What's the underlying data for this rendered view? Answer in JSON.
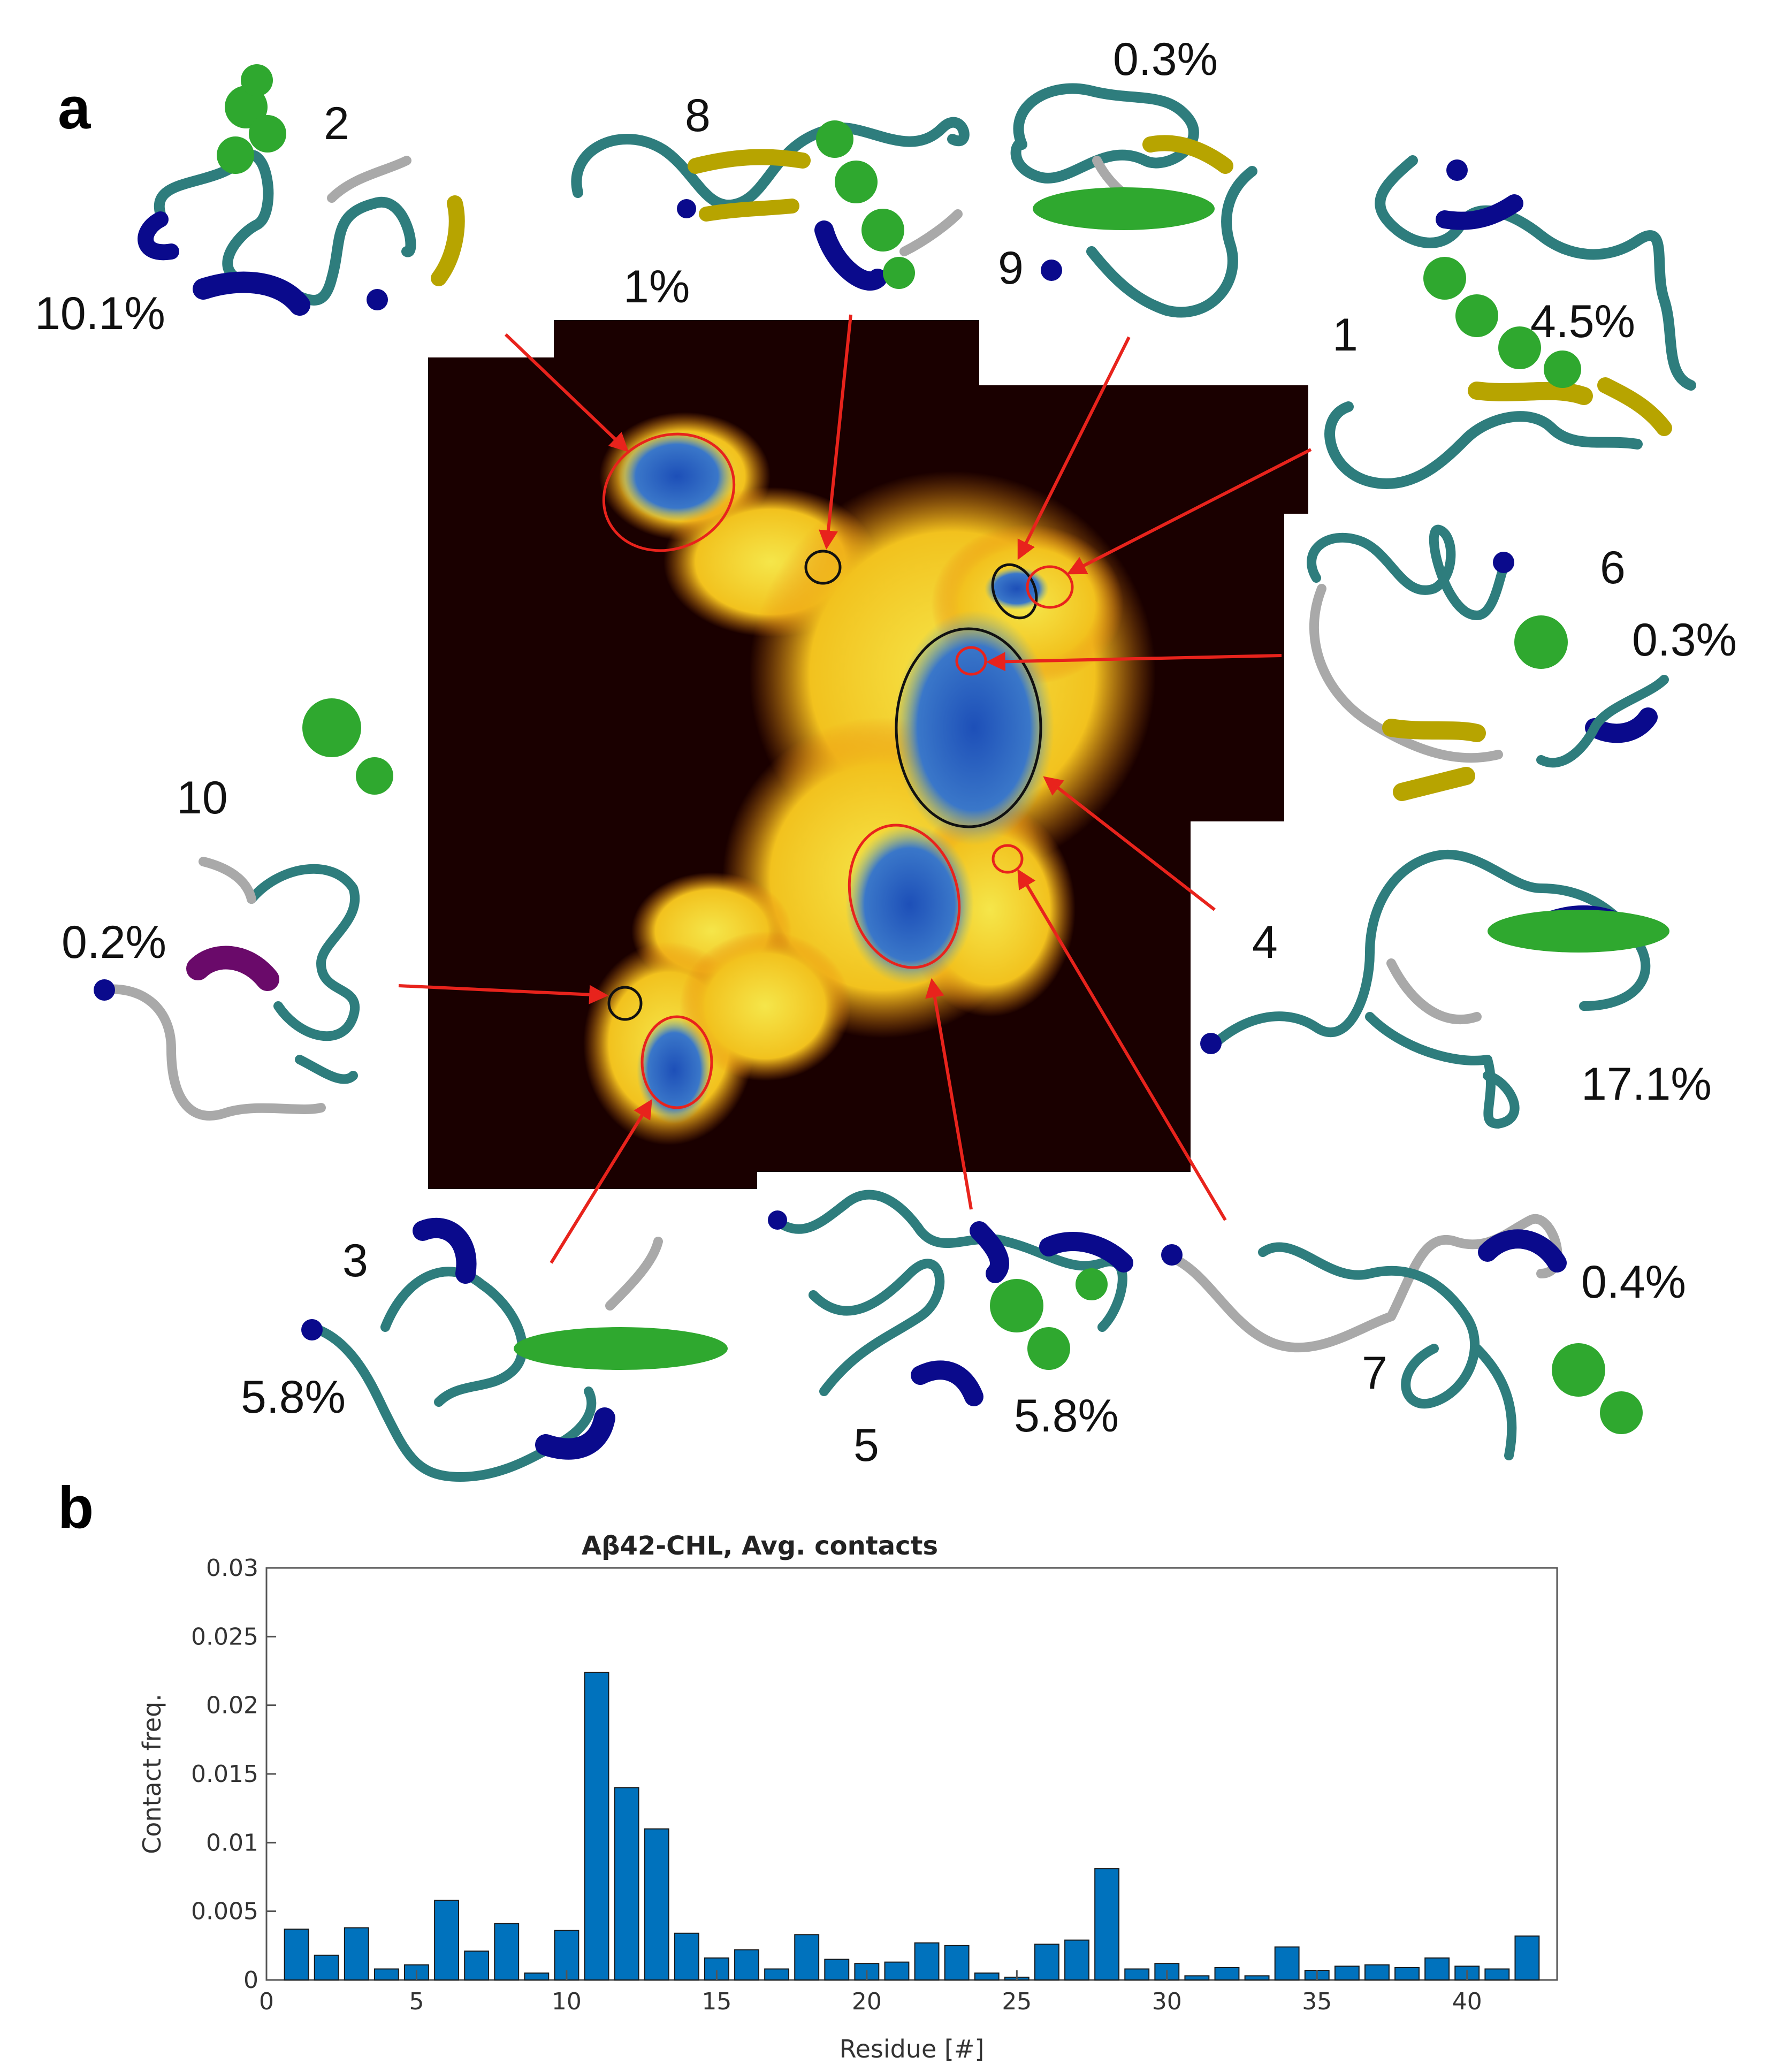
{
  "panel_a": {
    "letter": "a",
    "clusters": [
      {
        "id": "1",
        "percent": "4.5%"
      },
      {
        "id": "2",
        "percent": "10.1%"
      },
      {
        "id": "3",
        "percent": "5.8%"
      },
      {
        "id": "4",
        "percent": "17.1%"
      },
      {
        "id": "5",
        "percent": "5.8%"
      },
      {
        "id": "6",
        "percent": "0.3%"
      },
      {
        "id": "7",
        "percent": "0.4%"
      },
      {
        "id": "8",
        "percent": "1%"
      },
      {
        "id": "9",
        "percent": "0.3%"
      },
      {
        "id": "10",
        "percent": "0.2%"
      }
    ],
    "colors": {
      "background_map": "#1a0000",
      "density_low": "#ff9900",
      "density_mid": "#ffee33",
      "density_high": "#2255cc",
      "arrow": "#e8231c",
      "ribbon_coil": "#2e7d7d",
      "ribbon_helix": "#0a0a8c",
      "ribbon_sheet": "#b7a400",
      "ribbon_turn": "#a9a9a9",
      "ligand": "#2fa82f"
    }
  },
  "panel_b": {
    "letter": "b",
    "chart_data": {
      "type": "bar",
      "title": "Aβ42-CHL, Avg. contacts",
      "xlabel": "Residue [#]",
      "ylabel": "Contact freq.",
      "xlim": [
        0,
        43
      ],
      "ylim": [
        0,
        0.03
      ],
      "grid": false,
      "x": [
        1,
        2,
        3,
        4,
        5,
        6,
        7,
        8,
        9,
        10,
        11,
        12,
        13,
        14,
        15,
        16,
        17,
        18,
        19,
        20,
        21,
        22,
        23,
        24,
        25,
        26,
        27,
        28,
        29,
        30,
        31,
        32,
        33,
        34,
        35,
        36,
        37,
        38,
        39,
        40,
        41,
        42
      ],
      "values": [
        0.0037,
        0.0018,
        0.0038,
        0.0008,
        0.0011,
        0.0058,
        0.0021,
        0.0041,
        0.0005,
        0.0036,
        0.0224,
        0.014,
        0.011,
        0.0034,
        0.0016,
        0.0022,
        0.0008,
        0.0033,
        0.0015,
        0.0012,
        0.0013,
        0.0027,
        0.0025,
        0.0005,
        0.0002,
        0.0026,
        0.0029,
        0.0081,
        0.0008,
        0.0012,
        0.0003,
        0.0009,
        0.0003,
        0.0024,
        0.0007,
        0.001,
        0.0011,
        0.0009,
        0.0016,
        0.001,
        0.0008,
        0.0032
      ],
      "x_ticks": [
        "0",
        "5",
        "10",
        "15",
        "20",
        "25",
        "30",
        "35",
        "40"
      ],
      "y_ticks": [
        "0",
        "0.005",
        "0.01",
        "0.015",
        "0.02",
        "0.025",
        "0.03"
      ],
      "bar_color": "#0072bd"
    }
  }
}
